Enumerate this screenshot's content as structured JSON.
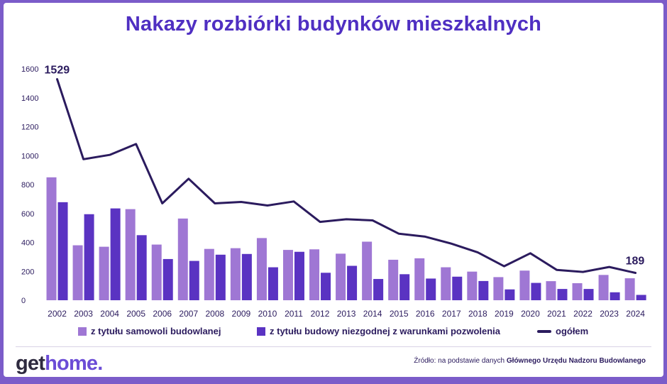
{
  "title": "Nakazy rozbiórki budynków mieszkalnych",
  "chart_data": {
    "type": "bar",
    "title": "Nakazy rozbiórki budynków mieszkalnych",
    "xlabel": "",
    "ylabel": "",
    "ylim": [
      0,
      1600
    ],
    "yticks": [
      0,
      200,
      400,
      600,
      800,
      1000,
      1200,
      1400,
      1600
    ],
    "categories": [
      "2002",
      "2003",
      "2004",
      "2005",
      "2006",
      "2007",
      "2008",
      "2009",
      "2010",
      "2011",
      "2012",
      "2013",
      "2014",
      "2015",
      "2016",
      "2017",
      "2018",
      "2019",
      "2020",
      "2021",
      "2022",
      "2023",
      "2024"
    ],
    "series": [
      {
        "name": "z tytułu samowoli budowlanej",
        "kind": "bar",
        "color": "#9f77d4",
        "values": [
          850,
          380,
          370,
          630,
          385,
          565,
          355,
          360,
          430,
          348,
          352,
          322,
          405,
          280,
          290,
          228,
          198,
          160,
          205,
          132,
          118,
          175,
          152
        ]
      },
      {
        "name": "z tytułu budowy niezgodnej z warunkami pozwolenia",
        "kind": "bar",
        "color": "#5a33c2",
        "values": [
          678,
          595,
          635,
          450,
          285,
          272,
          315,
          320,
          228,
          335,
          190,
          238,
          147,
          180,
          150,
          163,
          133,
          75,
          120,
          78,
          78,
          55,
          37
        ]
      },
      {
        "name": "ogółem",
        "kind": "line",
        "color": "#2b1b5e",
        "values": [
          1529,
          975,
          1005,
          1080,
          670,
          840,
          670,
          680,
          655,
          683,
          542,
          560,
          552,
          460,
          440,
          391,
          331,
          235,
          325,
          210,
          196,
          230,
          189
        ]
      }
    ],
    "annotations": [
      {
        "category": "2002",
        "series": "ogółem",
        "text": "1529"
      },
      {
        "category": "2024",
        "series": "ogółem",
        "text": "189"
      }
    ],
    "legend_position": "bottom"
  },
  "legend": {
    "samowola": "z tytułu samowoli budowlanej",
    "niezgodna": "z tytułu budowy niezgodnej z warunkami pozwolenia",
    "ogolem": "ogółem"
  },
  "footer": {
    "logo_part1": "get",
    "logo_part2": "home.",
    "source_prefix": "Źródło: na podstawie danych ",
    "source_bold": "Głównego Urzędu Nadzoru Budowlanego"
  }
}
